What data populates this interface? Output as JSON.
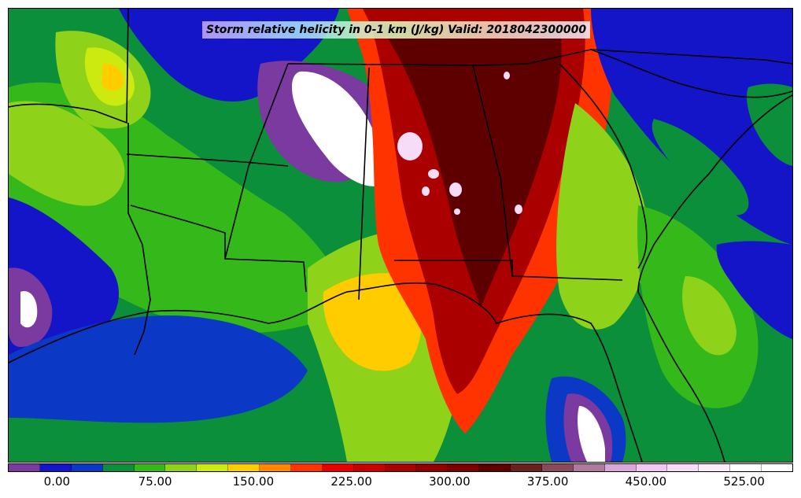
{
  "title": "Storm relative helicity in 0-1 km (J/kg) Valid: 2018042300000",
  "colorbar": {
    "colors": [
      "#7a3aa0",
      "#1414c8",
      "#0b38c4",
      "#0b8f3a",
      "#35b81a",
      "#8fd21a",
      "#ccea0f",
      "#ffcc00",
      "#ff8800",
      "#ff3300",
      "#e60000",
      "#c80000",
      "#aa0000",
      "#900000",
      "#7a0000",
      "#5e0000",
      "#6b2020",
      "#8a4a5a",
      "#b07aa0",
      "#d8a8d8",
      "#f0c8f0",
      "#f7dcf7",
      "#fbecfb",
      "#ffffff",
      "#ffffff"
    ],
    "tick_labels": [
      "0.00",
      "75.00",
      "150.00",
      "225.00",
      "300.00",
      "375.00",
      "450.00",
      "525.00"
    ],
    "tick_values": [
      0,
      75,
      150,
      225,
      300,
      375,
      450,
      525
    ],
    "range": [
      -37.5,
      562.5
    ]
  },
  "map": {
    "background": "#0b8f3a"
  }
}
